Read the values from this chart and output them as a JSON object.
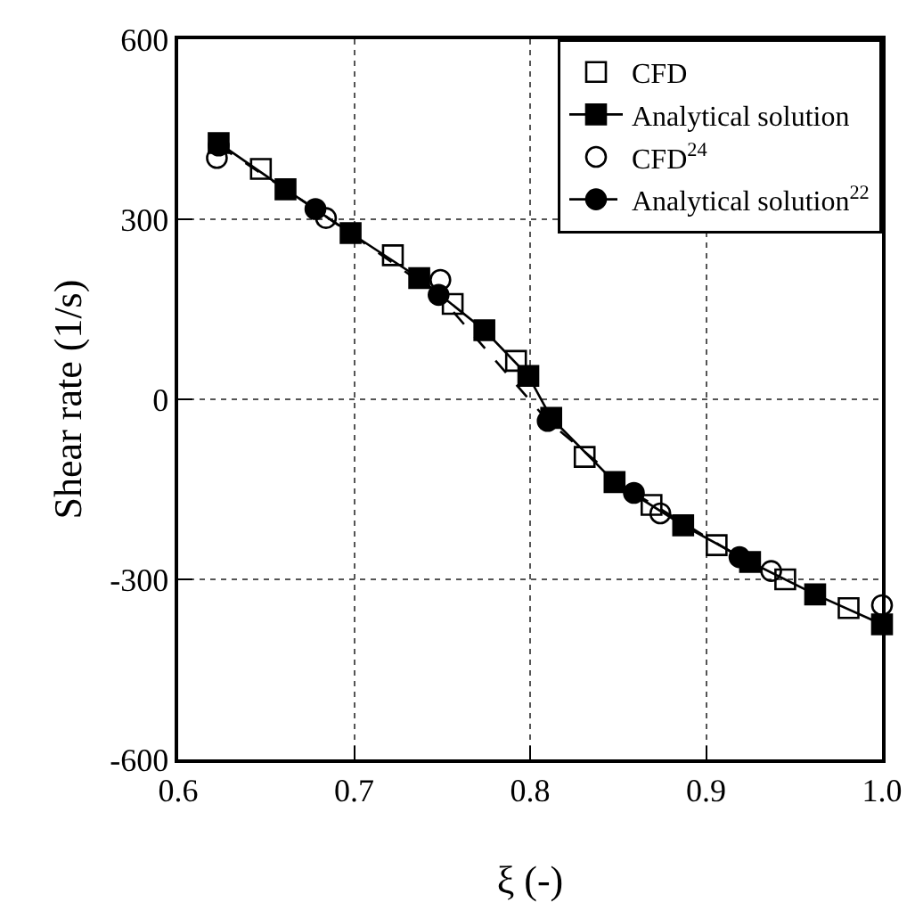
{
  "chart_data": {
    "type": "scatter",
    "xlabel": "ξ (-)",
    "ylabel": "Shear rate (1/s)",
    "xlim": [
      0.6,
      1.0
    ],
    "xticks": [
      0.6,
      0.7,
      0.8,
      0.9,
      {
        "value": 1.0,
        "label": "1.0"
      }
    ],
    "ylim": [
      -600,
      600
    ],
    "yticks": [
      -600,
      -300,
      0,
      300,
      600
    ],
    "grid": true,
    "legend": "top right",
    "series": [
      {
        "name": "CFD",
        "marker": "square",
        "color": "#000000",
        "x": [
          0.647,
          0.722,
          0.756,
          0.792,
          0.831,
          0.869,
          0.906,
          0.945,
          0.981
        ],
        "values": [
          384,
          240,
          159,
          64,
          -96,
          -176,
          -243,
          -300,
          -348
        ]
      },
      {
        "name": "Analytical solution",
        "type": "line",
        "marker": "square",
        "line_style": "solid",
        "color": "#000000",
        "x": [
          0.623,
          0.661,
          0.698,
          0.737,
          0.774,
          0.799,
          0.812,
          0.848,
          0.887,
          0.925,
          0.962,
          1.0
        ],
        "values": [
          427,
          350,
          277,
          202,
          115,
          39,
          -31,
          -138,
          -210,
          -271,
          -325,
          -375
        ]
      },
      {
        "name": "CFD$^{24}$",
        "marker": "circle",
        "color": "#000000",
        "x": [
          0.622,
          0.684,
          0.749,
          0.874,
          0.937,
          1.0
        ],
        "values": [
          402,
          302,
          199,
          -190,
          -286,
          -343
        ]
      },
      {
        "name": "Analytical solution$^{22}$",
        "type": "line",
        "marker": "circle",
        "line_style": "dashed",
        "color": "#000000",
        "x": [
          0.623,
          0.678,
          0.748,
          0.81,
          0.859,
          0.919
        ],
        "values": [
          423,
          317,
          174,
          -36,
          -156,
          -263
        ]
      }
    ]
  }
}
